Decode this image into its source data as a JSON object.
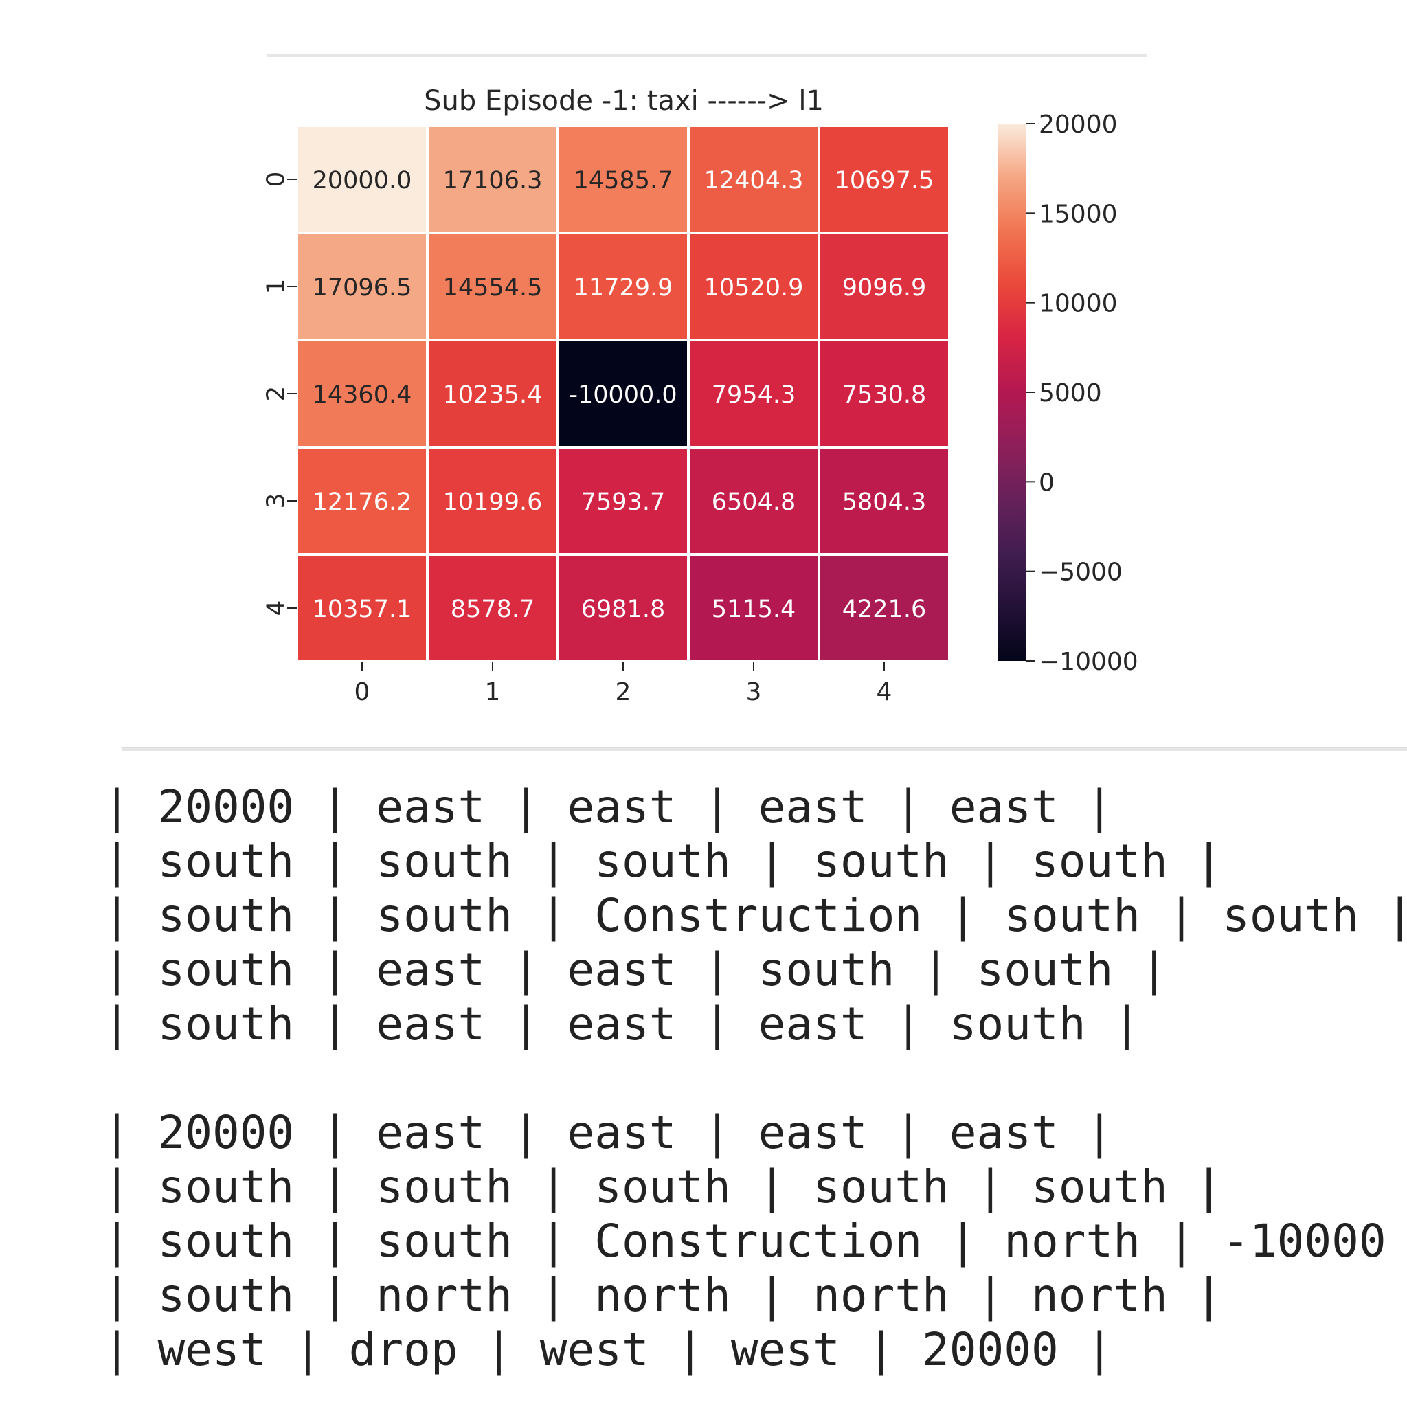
{
  "chart_data": {
    "type": "heatmap",
    "title": "Sub Episode -1: taxi ------> l1",
    "x_ticks": [
      "0",
      "1",
      "2",
      "3",
      "4"
    ],
    "y_ticks": [
      "0",
      "1",
      "2",
      "3",
      "4"
    ],
    "values": [
      [
        20000.0,
        17106.3,
        14585.7,
        12404.3,
        10697.5
      ],
      [
        17096.5,
        14554.5,
        11729.9,
        10520.9,
        9096.9
      ],
      [
        14360.4,
        10235.4,
        -10000.0,
        7954.3,
        7530.8
      ],
      [
        12176.2,
        10199.6,
        7593.7,
        6504.8,
        5804.3
      ],
      [
        10357.1,
        8578.7,
        6981.8,
        5115.4,
        4221.6
      ]
    ],
    "labels": [
      [
        "20000.0",
        "17106.3",
        "14585.7",
        "12404.3",
        "10697.5"
      ],
      [
        "17096.5",
        "14554.5",
        "11729.9",
        "10520.9",
        "9096.9"
      ],
      [
        "14360.4",
        "10235.4",
        "-10000.0",
        "7954.3",
        "7530.8"
      ],
      [
        "12176.2",
        "10199.6",
        "7593.7",
        "6504.8",
        "5804.3"
      ],
      [
        "10357.1",
        "8578.7",
        "6981.8",
        "5115.4",
        "4221.6"
      ]
    ],
    "colorbar": {
      "range": [
        -10000,
        20000
      ],
      "ticks": [
        20000,
        15000,
        10000,
        5000,
        0,
        -5000,
        -10000
      ],
      "tick_labels": [
        "20000",
        "15000",
        "10000",
        "5000",
        "0",
        "−5000",
        "−10000"
      ],
      "colormap": "rocket"
    }
  },
  "output": {
    "block1": [
      "| 20000 | east | east | east | east |",
      "| south | south | south | south | south |",
      "| south | south | Construction | south | south |",
      "| south | east | east | south | south |",
      "| south | east | east | east | south |"
    ],
    "block2": [
      "| 20000 | east | east | east | east |",
      "| south | south | south | south | south |",
      "| south | south | Construction | north | -10000 |",
      "| south | north | north | north | north |",
      "| west | drop | west | west | 20000 |"
    ]
  }
}
